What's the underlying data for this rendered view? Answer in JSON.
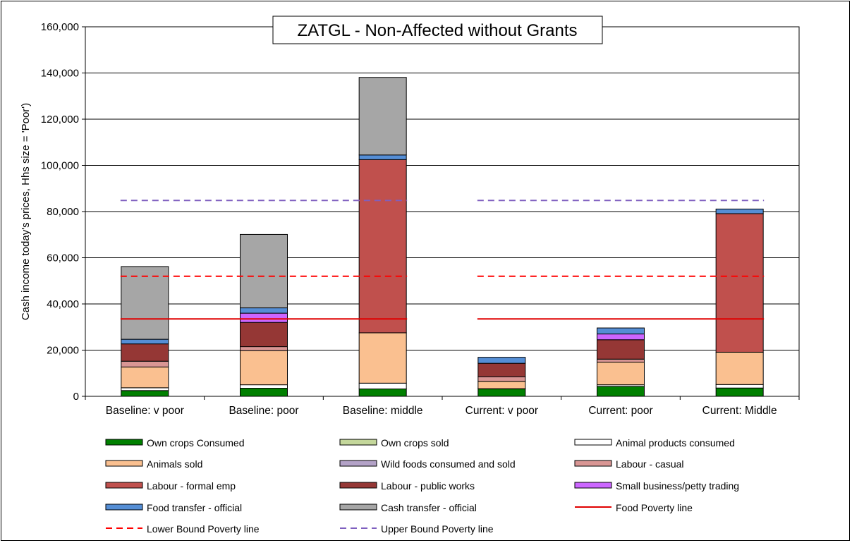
{
  "chart_data": {
    "type": "bar",
    "stacked": true,
    "title": "ZATGL - Non-Affected without Grants",
    "ylabel": "Cash income today's prices, Hhs size = 'Poor')",
    "xlabel": "",
    "ylim": [
      0,
      160000
    ],
    "yticks": [
      0,
      20000,
      40000,
      60000,
      80000,
      100000,
      120000,
      140000,
      160000
    ],
    "ytick_labels": [
      "0",
      "20,000",
      "40,000",
      "60,000",
      "80,000",
      "100,000",
      "120,000",
      "140,000",
      "160,000"
    ],
    "grid": true,
    "legend_position": "bottom",
    "categories": [
      "Baseline: v poor",
      "Baseline: poor",
      "Baseline: middle",
      "Current: v poor",
      "Current: poor",
      "Current: Middle"
    ],
    "series": [
      {
        "name": "Own crops Consumed",
        "color": "#008000",
        "values": [
          2500,
          3500,
          3200,
          3200,
          4300,
          3600
        ]
      },
      {
        "name": "Own crops sold",
        "color": "#c4d79b",
        "values": [
          0,
          0,
          0,
          0,
          0,
          0
        ]
      },
      {
        "name": "Animal products consumed",
        "color": "#ffffff",
        "values": [
          1200,
          1500,
          2500,
          100,
          700,
          1500
        ]
      },
      {
        "name": "Animals sold",
        "color": "#fac090",
        "values": [
          9000,
          14800,
          21800,
          3200,
          9800,
          14000
        ]
      },
      {
        "name": "Wild foods consumed and sold",
        "color": "#b3a2c7",
        "values": [
          0,
          0,
          0,
          0,
          0,
          0
        ]
      },
      {
        "name": "Labour - casual",
        "color": "#d99694",
        "values": [
          2500,
          1700,
          0,
          2000,
          1300,
          0
        ]
      },
      {
        "name": "Labour - formal emp",
        "color": "#c0504d",
        "values": [
          0,
          0,
          75000,
          0,
          0,
          60000
        ]
      },
      {
        "name": "Labour - public works",
        "color": "#953735",
        "values": [
          7500,
          10500,
          0,
          5800,
          8400,
          0
        ]
      },
      {
        "name": "Small business/petty trading",
        "color": "#cc66ff",
        "values": [
          0,
          4000,
          0,
          0,
          2500,
          0
        ]
      },
      {
        "name": "Food transfer - official",
        "color": "#558ed5",
        "values": [
          2000,
          2300,
          2000,
          2600,
          2600,
          2000
        ]
      },
      {
        "name": "Cash transfer - official",
        "color": "#a6a6a6",
        "values": [
          31500,
          31800,
          33600,
          0,
          0,
          0
        ]
      }
    ],
    "lines": [
      {
        "name": "Food Poverty line",
        "color": "#e00000",
        "style": "solid",
        "value": 33500,
        "segments": [
          [
            0,
            2
          ],
          [
            3,
            5
          ]
        ]
      },
      {
        "name": "Lower Bound Poverty line",
        "color": "#ff0000",
        "style": "dashed",
        "value": 52000,
        "segments": [
          [
            0,
            2
          ],
          [
            3,
            5
          ]
        ]
      },
      {
        "name": "Upper Bound Poverty line",
        "color": "#7f5fbf",
        "style": "dashed",
        "value": 84800,
        "segments": [
          [
            0,
            2
          ],
          [
            3,
            5
          ]
        ]
      }
    ]
  }
}
